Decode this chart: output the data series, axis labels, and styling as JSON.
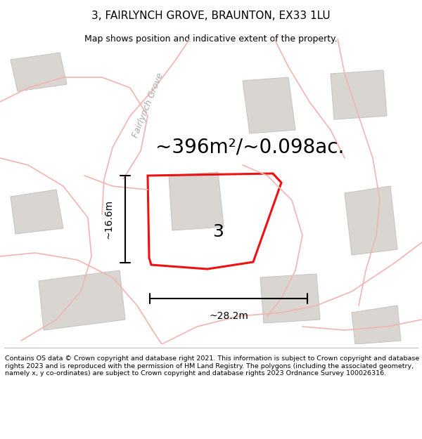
{
  "title_line1": "3, FAIRLYNCH GROVE, BRAUNTON, EX33 1LU",
  "title_line2": "Map shows position and indicative extent of the property.",
  "area_text": "~396m²/~0.098ac.",
  "dim_height": "~16.6m",
  "dim_width": "~28.2m",
  "plot_number": "3",
  "road_name": "Fairlynch Grove",
  "copyright_text": "Contains OS data © Crown copyright and database right 2021. This information is subject to Crown copyright and database rights 2023 and is reproduced with the permission of HM Land Registry. The polygons (including the associated geometry, namely x, y co-ordinates) are subject to Crown copyright and database rights 2023 Ordnance Survey 100026316.",
  "bg_color": "#ffffff",
  "map_bg": "#f7f5f2",
  "building_color": "#d9d6d1",
  "building_edge": "#c9c6c1",
  "road_pink": "#f2b4b0",
  "road_pink_thin": "#f5c8c5",
  "plot_color": "#ee1111",
  "title_fontsize": 11,
  "subtitle_fontsize": 9,
  "area_fontsize": 20,
  "dim_fontsize": 10,
  "plot_num_fontsize": 18,
  "road_fontsize": 9,
  "footer_fontsize": 6.8,
  "road_label_color": "#aaaaaa",
  "road_lw": 1.2,
  "plot_lw": 2.2
}
